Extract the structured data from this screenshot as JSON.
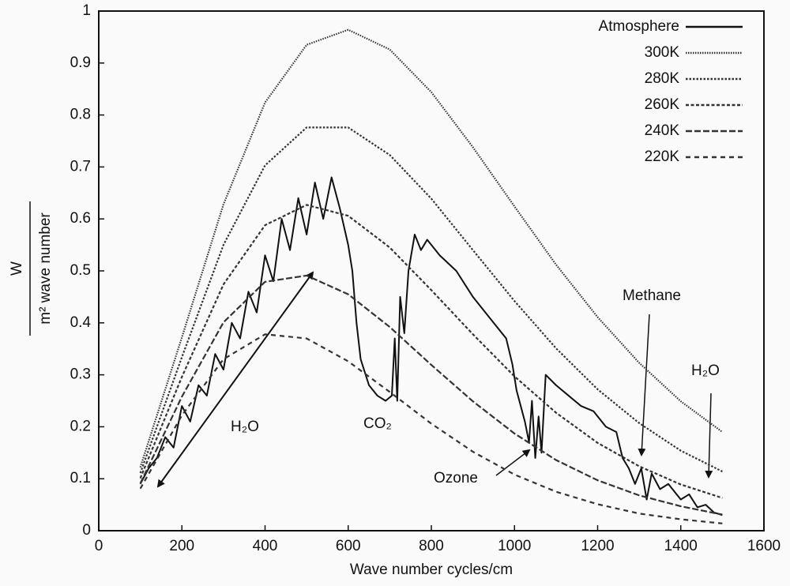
{
  "chart_data": {
    "type": "line",
    "xlabel": "Wave number cycles/cm",
    "ylabel": {
      "numerator": "W",
      "denominator": "m² wave number"
    },
    "xlim": [
      0,
      1600
    ],
    "ylim": [
      0,
      1
    ],
    "xticks": [
      0,
      200,
      400,
      600,
      800,
      1000,
      1200,
      1400,
      1600
    ],
    "yticks": [
      0,
      0.1,
      0.2,
      0.3,
      0.4,
      0.5,
      0.6,
      0.7,
      0.8,
      0.9,
      1
    ],
    "grid": false,
    "legend": "upper right",
    "annotations": [
      "H₂O",
      "CO₂",
      "Ozone",
      "Methane",
      "H₂O"
    ],
    "series": [
      {
        "name": "Atmosphere",
        "color": "#111111",
        "dash": "none",
        "x": [
          100,
          120,
          140,
          160,
          180,
          200,
          220,
          240,
          260,
          280,
          300,
          320,
          340,
          360,
          380,
          400,
          420,
          440,
          460,
          480,
          500,
          520,
          540,
          560,
          580,
          600,
          610,
          620,
          630,
          650,
          670,
          690,
          705,
          712,
          718,
          725,
          735,
          745,
          760,
          775,
          790,
          820,
          860,
          900,
          940,
          980,
          995,
          1005,
          1025,
          1035,
          1042,
          1050,
          1058,
          1065,
          1075,
          1100,
          1130,
          1160,
          1190,
          1220,
          1245,
          1260,
          1275,
          1290,
          1305,
          1318,
          1330,
          1350,
          1370,
          1400,
          1420,
          1440,
          1460,
          1480,
          1500
        ],
        "values": [
          0.09,
          0.12,
          0.14,
          0.18,
          0.16,
          0.24,
          0.21,
          0.28,
          0.26,
          0.34,
          0.31,
          0.4,
          0.37,
          0.46,
          0.42,
          0.53,
          0.48,
          0.6,
          0.54,
          0.64,
          0.57,
          0.67,
          0.6,
          0.68,
          0.62,
          0.55,
          0.5,
          0.4,
          0.33,
          0.28,
          0.26,
          0.25,
          0.26,
          0.37,
          0.25,
          0.45,
          0.38,
          0.5,
          0.57,
          0.54,
          0.56,
          0.53,
          0.5,
          0.45,
          0.41,
          0.37,
          0.32,
          0.27,
          0.21,
          0.17,
          0.25,
          0.14,
          0.22,
          0.15,
          0.3,
          0.28,
          0.26,
          0.24,
          0.23,
          0.2,
          0.19,
          0.14,
          0.12,
          0.09,
          0.12,
          0.06,
          0.11,
          0.08,
          0.09,
          0.06,
          0.07,
          0.045,
          0.05,
          0.035,
          0.03
        ]
      },
      {
        "name": "300K",
        "color": "#333333",
        "dash": "1.5,1.5",
        "x": [
          100,
          200,
          300,
          400,
          500,
          600,
          700,
          800,
          900,
          1000,
          1100,
          1200,
          1300,
          1400,
          1500
        ],
        "values": [
          0.122,
          0.372,
          0.628,
          0.824,
          0.935,
          0.964,
          0.926,
          0.844,
          0.738,
          0.624,
          0.512,
          0.411,
          0.323,
          0.249,
          0.19
        ]
      },
      {
        "name": "280K",
        "color": "#333333",
        "dash": "2.5,2",
        "x": [
          100,
          200,
          300,
          400,
          500,
          600,
          700,
          800,
          900,
          1000,
          1100,
          1200,
          1300,
          1400,
          1500
        ],
        "values": [
          0.111,
          0.334,
          0.55,
          0.703,
          0.776,
          0.776,
          0.723,
          0.639,
          0.54,
          0.442,
          0.351,
          0.272,
          0.207,
          0.154,
          0.114
        ]
      },
      {
        "name": "260K",
        "color": "#333333",
        "dash": "4,2.5",
        "x": [
          100,
          200,
          300,
          400,
          500,
          600,
          700,
          800,
          900,
          1000,
          1100,
          1200,
          1300,
          1400,
          1500
        ],
        "values": [
          0.101,
          0.296,
          0.474,
          0.588,
          0.627,
          0.606,
          0.545,
          0.463,
          0.378,
          0.297,
          0.227,
          0.169,
          0.124,
          0.089,
          0.063
        ]
      },
      {
        "name": "240K",
        "color": "#333333",
        "dash": "8,3",
        "x": [
          100,
          200,
          300,
          400,
          500,
          600,
          700,
          800,
          900,
          1000,
          1100,
          1200,
          1300,
          1400,
          1500
        ],
        "values": [
          0.091,
          0.258,
          0.401,
          0.479,
          0.491,
          0.455,
          0.392,
          0.319,
          0.249,
          0.187,
          0.136,
          0.097,
          0.068,
          0.047,
          0.031
        ]
      },
      {
        "name": "220K",
        "color": "#333333",
        "dash": "6,5",
        "x": [
          100,
          200,
          300,
          400,
          500,
          600,
          700,
          800,
          900,
          1000,
          1100,
          1200,
          1300,
          1400,
          1500
        ],
        "values": [
          0.081,
          0.222,
          0.33,
          0.378,
          0.37,
          0.326,
          0.267,
          0.206,
          0.152,
          0.108,
          0.075,
          0.051,
          0.033,
          0.022,
          0.014
        ]
      }
    ]
  }
}
